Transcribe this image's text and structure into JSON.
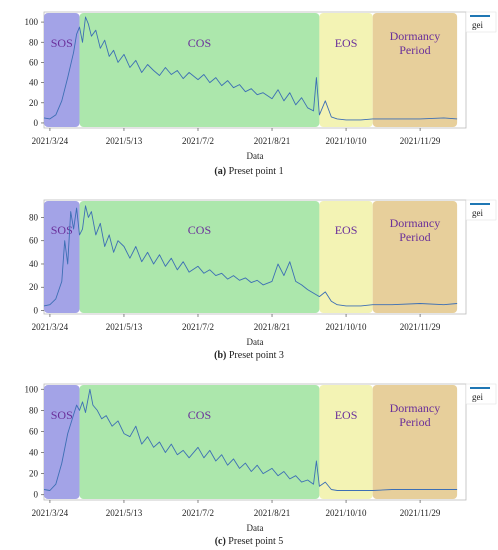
{
  "chart_data": [
    {
      "type": "line",
      "caption_id": "(a)",
      "caption_text": " Preset point 1",
      "xlabel": "Data",
      "ylabel": "",
      "x_ticks": [
        "2021/3/24",
        "2021/5/13",
        "2021/7/2",
        "2021/8/21",
        "2021/10/10",
        "2021/11/29"
      ],
      "x_range": [
        "2021/3/20",
        "2021/12/30"
      ],
      "ylim": [
        -5,
        110
      ],
      "y_ticks": [
        0,
        20,
        40,
        60,
        80,
        100
      ],
      "legend": "gei",
      "legend_position": "top-right",
      "phases": [
        {
          "label": "SOS",
          "start": "2021/3/20",
          "end": "2021/4/13",
          "color": "#9e9ee6"
        },
        {
          "label": "COS",
          "start": "2021/4/13",
          "end": "2021/9/22",
          "color": "#a8e6a8"
        },
        {
          "label": "EOS",
          "start": "2021/9/22",
          "end": "2021/10/28",
          "color": "#f2f2b0"
        },
        {
          "label": "Dormancy\nPeriod",
          "start": "2021/10/28",
          "end": "2021/12/24",
          "color": "#e6cc96"
        }
      ],
      "series": [
        {
          "values": [
            [
              "2021/3/20",
              5
            ],
            [
              "2021/3/24",
              4
            ],
            [
              "2021/3/28",
              8
            ],
            [
              "2021/4/1",
              22
            ],
            [
              "2021/4/5",
              45
            ],
            [
              "2021/4/9",
              70
            ],
            [
              "2021/4/11",
              88
            ],
            [
              "2021/4/13",
              95
            ],
            [
              "2021/4/15",
              80
            ],
            [
              "2021/4/17",
              105
            ],
            [
              "2021/4/19",
              98
            ],
            [
              "2021/4/21",
              86
            ],
            [
              "2021/4/24",
              92
            ],
            [
              "2021/4/27",
              74
            ],
            [
              "2021/4/30",
              82
            ],
            [
              "2021/5/3",
              66
            ],
            [
              "2021/5/6",
              72
            ],
            [
              "2021/5/9",
              60
            ],
            [
              "2021/5/13",
              68
            ],
            [
              "2021/5/17",
              55
            ],
            [
              "2021/5/21",
              62
            ],
            [
              "2021/5/25",
              50
            ],
            [
              "2021/5/29",
              58
            ],
            [
              "2021/6/2",
              52
            ],
            [
              "2021/6/6",
              47
            ],
            [
              "2021/6/10",
              55
            ],
            [
              "2021/6/14",
              48
            ],
            [
              "2021/6/18",
              52
            ],
            [
              "2021/6/22",
              44
            ],
            [
              "2021/6/26",
              50
            ],
            [
              "2021/7/2",
              43
            ],
            [
              "2021/7/6",
              48
            ],
            [
              "2021/7/10",
              40
            ],
            [
              "2021/7/14",
              45
            ],
            [
              "2021/7/18",
              37
            ],
            [
              "2021/7/22",
              42
            ],
            [
              "2021/7/26",
              35
            ],
            [
              "2021/7/30",
              38
            ],
            [
              "2021/8/3",
              31
            ],
            [
              "2021/8/7",
              34
            ],
            [
              "2021/8/11",
              28
            ],
            [
              "2021/8/15",
              30
            ],
            [
              "2021/8/19",
              26
            ],
            [
              "2021/8/21",
              24
            ],
            [
              "2021/8/25",
              33
            ],
            [
              "2021/8/29",
              22
            ],
            [
              "2021/9/2",
              30
            ],
            [
              "2021/9/6",
              18
            ],
            [
              "2021/9/10",
              25
            ],
            [
              "2021/9/14",
              15
            ],
            [
              "2021/9/18",
              12
            ],
            [
              "2021/9/20",
              45
            ],
            [
              "2021/9/22",
              8
            ],
            [
              "2021/9/26",
              22
            ],
            [
              "2021/9/30",
              6
            ],
            [
              "2021/10/4",
              4
            ],
            [
              "2021/10/10",
              3
            ],
            [
              "2021/10/20",
              3
            ],
            [
              "2021/10/28",
              4
            ],
            [
              "2021/11/10",
              4
            ],
            [
              "2021/11/29",
              4
            ],
            [
              "2021/12/15",
              5
            ],
            [
              "2021/12/24",
              4
            ]
          ]
        }
      ]
    },
    {
      "type": "line",
      "caption_id": "(b)",
      "caption_text": " Preset point 3",
      "xlabel": "Data",
      "ylabel": "",
      "x_ticks": [
        "2021/3/24",
        "2021/5/13",
        "2021/7/2",
        "2021/8/21",
        "2021/10/10",
        "2021/11/29"
      ],
      "x_range": [
        "2021/3/20",
        "2021/12/30"
      ],
      "ylim": [
        -3,
        95
      ],
      "y_ticks": [
        0,
        20,
        40,
        60,
        80
      ],
      "legend": "gei",
      "legend_position": "top-right",
      "phases": [
        {
          "label": "SOS",
          "start": "2021/3/20",
          "end": "2021/4/13",
          "color": "#9e9ee6"
        },
        {
          "label": "COS",
          "start": "2021/4/13",
          "end": "2021/9/22",
          "color": "#a8e6a8"
        },
        {
          "label": "EOS",
          "start": "2021/9/22",
          "end": "2021/10/28",
          "color": "#f2f2b0"
        },
        {
          "label": "Dormancy\nPeriod",
          "start": "2021/10/28",
          "end": "2021/12/24",
          "color": "#e6cc96"
        }
      ],
      "series": [
        {
          "values": [
            [
              "2021/3/20",
              4
            ],
            [
              "2021/3/24",
              5
            ],
            [
              "2021/3/28",
              10
            ],
            [
              "2021/4/1",
              25
            ],
            [
              "2021/4/3",
              60
            ],
            [
              "2021/4/5",
              40
            ],
            [
              "2021/4/7",
              85
            ],
            [
              "2021/4/9",
              70
            ],
            [
              "2021/4/11",
              88
            ],
            [
              "2021/4/13",
              65
            ],
            [
              "2021/4/15",
              70
            ],
            [
              "2021/4/17",
              90
            ],
            [
              "2021/4/19",
              80
            ],
            [
              "2021/4/21",
              85
            ],
            [
              "2021/4/24",
              65
            ],
            [
              "2021/4/27",
              75
            ],
            [
              "2021/4/30",
              55
            ],
            [
              "2021/5/3",
              65
            ],
            [
              "2021/5/6",
              50
            ],
            [
              "2021/5/9",
              60
            ],
            [
              "2021/5/13",
              55
            ],
            [
              "2021/5/17",
              45
            ],
            [
              "2021/5/21",
              55
            ],
            [
              "2021/5/25",
              42
            ],
            [
              "2021/5/29",
              50
            ],
            [
              "2021/6/2",
              40
            ],
            [
              "2021/6/6",
              48
            ],
            [
              "2021/6/10",
              38
            ],
            [
              "2021/6/14",
              45
            ],
            [
              "2021/6/18",
              35
            ],
            [
              "2021/6/22",
              42
            ],
            [
              "2021/6/26",
              33
            ],
            [
              "2021/7/2",
              38
            ],
            [
              "2021/7/6",
              32
            ],
            [
              "2021/7/10",
              35
            ],
            [
              "2021/7/14",
              30
            ],
            [
              "2021/7/18",
              32
            ],
            [
              "2021/7/22",
              27
            ],
            [
              "2021/7/26",
              30
            ],
            [
              "2021/7/30",
              26
            ],
            [
              "2021/8/3",
              28
            ],
            [
              "2021/8/7",
              24
            ],
            [
              "2021/8/11",
              26
            ],
            [
              "2021/8/15",
              22
            ],
            [
              "2021/8/21",
              25
            ],
            [
              "2021/8/25",
              40
            ],
            [
              "2021/8/29",
              30
            ],
            [
              "2021/9/2",
              42
            ],
            [
              "2021/9/6",
              25
            ],
            [
              "2021/9/10",
              22
            ],
            [
              "2021/9/14",
              18
            ],
            [
              "2021/9/18",
              15
            ],
            [
              "2021/9/22",
              12
            ],
            [
              "2021/9/26",
              16
            ],
            [
              "2021/9/30",
              8
            ],
            [
              "2021/10/4",
              5
            ],
            [
              "2021/10/10",
              4
            ],
            [
              "2021/10/20",
              4
            ],
            [
              "2021/10/28",
              5
            ],
            [
              "2021/11/10",
              5
            ],
            [
              "2021/11/29",
              6
            ],
            [
              "2021/12/15",
              5
            ],
            [
              "2021/12/24",
              6
            ]
          ]
        }
      ]
    },
    {
      "type": "line",
      "caption_id": "(c)",
      "caption_text": " Preset point 5",
      "xlabel": "Data",
      "ylabel": "",
      "x_ticks": [
        "2021/3/24",
        "2021/5/13",
        "2021/7/2",
        "2021/8/21",
        "2021/10/10",
        "2021/11/29"
      ],
      "x_range": [
        "2021/3/20",
        "2021/12/30"
      ],
      "ylim": [
        -5,
        105
      ],
      "y_ticks": [
        0,
        20,
        40,
        60,
        80,
        100
      ],
      "legend": "gei",
      "legend_position": "top-right",
      "phases": [
        {
          "label": "SOS",
          "start": "2021/3/20",
          "end": "2021/4/13",
          "color": "#9e9ee6"
        },
        {
          "label": "COS",
          "start": "2021/4/13",
          "end": "2021/9/22",
          "color": "#a8e6a8"
        },
        {
          "label": "EOS",
          "start": "2021/9/22",
          "end": "2021/10/28",
          "color": "#f2f2b0"
        },
        {
          "label": "Dormancy\nPeriod",
          "start": "2021/10/28",
          "end": "2021/12/24",
          "color": "#e6cc96"
        }
      ],
      "series": [
        {
          "values": [
            [
              "2021/3/20",
              5
            ],
            [
              "2021/3/24",
              4
            ],
            [
              "2021/3/28",
              10
            ],
            [
              "2021/4/1",
              30
            ],
            [
              "2021/4/5",
              58
            ],
            [
              "2021/4/9",
              76
            ],
            [
              "2021/4/11",
              85
            ],
            [
              "2021/4/13",
              80
            ],
            [
              "2021/4/15",
              88
            ],
            [
              "2021/4/17",
              78
            ],
            [
              "2021/4/20",
              100
            ],
            [
              "2021/4/22",
              85
            ],
            [
              "2021/4/25",
              80
            ],
            [
              "2021/4/28",
              72
            ],
            [
              "2021/5/1",
              75
            ],
            [
              "2021/5/5",
              65
            ],
            [
              "2021/5/9",
              70
            ],
            [
              "2021/5/13",
              58
            ],
            [
              "2021/5/17",
              55
            ],
            [
              "2021/5/21",
              65
            ],
            [
              "2021/5/25",
              48
            ],
            [
              "2021/5/29",
              55
            ],
            [
              "2021/6/2",
              45
            ],
            [
              "2021/6/6",
              50
            ],
            [
              "2021/6/10",
              40
            ],
            [
              "2021/6/14",
              48
            ],
            [
              "2021/6/18",
              38
            ],
            [
              "2021/6/22",
              42
            ],
            [
              "2021/6/26",
              35
            ],
            [
              "2021/7/2",
              45
            ],
            [
              "2021/7/6",
              35
            ],
            [
              "2021/7/10",
              42
            ],
            [
              "2021/7/14",
              32
            ],
            [
              "2021/7/18",
              38
            ],
            [
              "2021/7/22",
              28
            ],
            [
              "2021/7/26",
              34
            ],
            [
              "2021/7/30",
              25
            ],
            [
              "2021/8/3",
              30
            ],
            [
              "2021/8/7",
              22
            ],
            [
              "2021/8/11",
              28
            ],
            [
              "2021/8/15",
              20
            ],
            [
              "2021/8/21",
              25
            ],
            [
              "2021/8/25",
              18
            ],
            [
              "2021/8/29",
              22
            ],
            [
              "2021/9/2",
              15
            ],
            [
              "2021/9/6",
              18
            ],
            [
              "2021/9/10",
              12
            ],
            [
              "2021/9/14",
              14
            ],
            [
              "2021/9/18",
              10
            ],
            [
              "2021/9/20",
              32
            ],
            [
              "2021/9/22",
              8
            ],
            [
              "2021/9/26",
              12
            ],
            [
              "2021/9/30",
              5
            ],
            [
              "2021/10/4",
              4
            ],
            [
              "2021/10/10",
              4
            ],
            [
              "2021/10/20",
              4
            ],
            [
              "2021/10/28",
              4
            ],
            [
              "2021/11/10",
              5
            ],
            [
              "2021/11/29",
              5
            ],
            [
              "2021/12/15",
              5
            ],
            [
              "2021/12/24",
              5
            ]
          ]
        }
      ]
    }
  ],
  "colors": {
    "line": "#3d6fb4",
    "legend_line": "#1f77b4",
    "phase_text": "#6a2f9a"
  }
}
